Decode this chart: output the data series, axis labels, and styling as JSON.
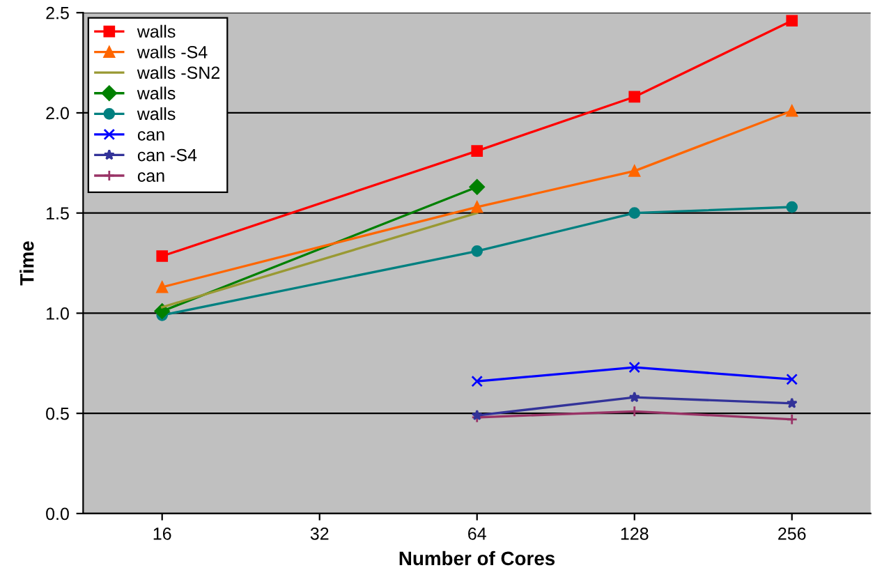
{
  "chart_data": {
    "type": "line",
    "xlabel": "Number of Cores",
    "ylabel": "Time",
    "log": "x",
    "xlim": [
      11.3,
      362
    ],
    "xticks": [
      16,
      32,
      64,
      128,
      256
    ],
    "ylim": [
      0,
      2.5
    ],
    "yticks": [
      {
        "value": 0,
        "label": "0.0"
      },
      {
        "value": 0.5,
        "label": "0.5"
      },
      {
        "value": 1,
        "label": "1.0"
      },
      {
        "value": 1.5,
        "label": "1.5"
      },
      {
        "value": 2,
        "label": "2.0"
      },
      {
        "value": 2.5,
        "label": "2.5"
      }
    ],
    "grid": "y",
    "legend": "top left",
    "series": [
      {
        "name": "walls",
        "color": "#ff0000",
        "marker": "square",
        "x": [
          16,
          64,
          128,
          256
        ],
        "values": [
          1.285,
          1.81,
          2.08,
          2.46
        ]
      },
      {
        "name": "walls -S4",
        "color": "#ff6600",
        "marker": "triangle",
        "x": [
          16,
          64,
          128,
          256
        ],
        "values": [
          1.13,
          1.53,
          1.71,
          2.01
        ]
      },
      {
        "name": "walls -SN2",
        "color": "#999933",
        "marker": "none",
        "x": [
          16,
          64
        ],
        "values": [
          1.03,
          1.5
        ]
      },
      {
        "name": "walls",
        "color": "#008000",
        "marker": "diamond",
        "x": [
          16,
          64
        ],
        "values": [
          1.01,
          1.63
        ]
      },
      {
        "name": "walls",
        "color": "#008080",
        "marker": "circle",
        "x": [
          16,
          64,
          128,
          256
        ],
        "values": [
          0.99,
          1.31,
          1.5,
          1.53
        ]
      },
      {
        "name": "can",
        "color": "#0000ff",
        "marker": "cross",
        "x": [
          64,
          128,
          256
        ],
        "values": [
          0.66,
          0.73,
          0.67
        ]
      },
      {
        "name": "can -S4",
        "color": "#333399",
        "marker": "star",
        "x": [
          64,
          128,
          256
        ],
        "values": [
          0.49,
          0.58,
          0.55
        ]
      },
      {
        "name": "can",
        "color": "#993366",
        "marker": "plus",
        "x": [
          64,
          128,
          256
        ],
        "values": [
          0.48,
          0.51,
          0.47
        ]
      }
    ]
  }
}
